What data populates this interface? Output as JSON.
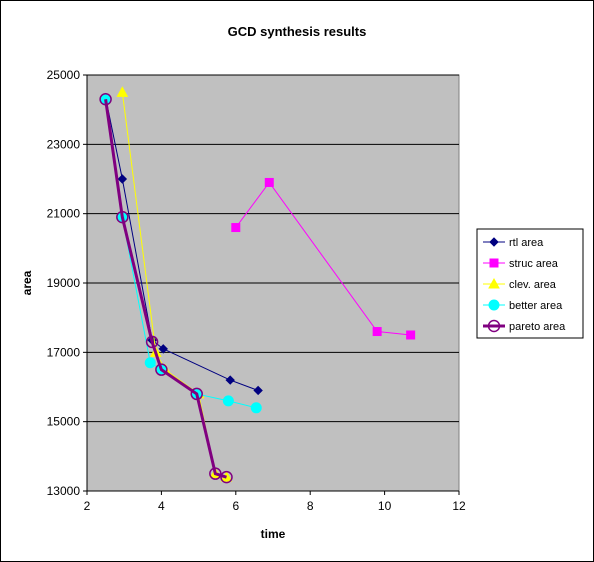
{
  "chart_data": {
    "type": "line",
    "title": "GCD synthesis results",
    "xlabel": "time",
    "ylabel": "area",
    "xlim": [
      2,
      12
    ],
    "ylim": [
      13000,
      25000
    ],
    "xticks": [
      2,
      4,
      6,
      8,
      10,
      12
    ],
    "yticks": [
      13000,
      15000,
      17000,
      19000,
      21000,
      23000,
      25000
    ],
    "tick_labels_x": [
      "2",
      "4",
      "6",
      "8",
      "10",
      "12"
    ],
    "tick_labels_y": [
      "13000",
      "15000",
      "17000",
      "19000",
      "21000",
      "23000",
      "25000"
    ],
    "grid": "horizontal",
    "plot_background": "#c0c0c0",
    "legend_position": "right",
    "series": [
      {
        "name": "rtl area",
        "color": "#000080",
        "marker": "diamond",
        "points": [
          [
            2.5,
            24350
          ],
          [
            2.95,
            22000
          ],
          [
            3.75,
            17350
          ],
          [
            4.05,
            17100
          ],
          [
            5.85,
            16200
          ],
          [
            6.6,
            15900
          ]
        ]
      },
      {
        "name": "struc area",
        "color": "#ff00ff",
        "marker": "square",
        "points": [
          [
            6.0,
            20600
          ],
          [
            6.9,
            21900
          ],
          [
            9.8,
            17600
          ],
          [
            10.7,
            17500
          ]
        ]
      },
      {
        "name": "clev. area",
        "color": "#ffff00",
        "marker": "triangle",
        "points": [
          [
            2.95,
            24500
          ],
          [
            3.85,
            17000
          ],
          [
            4.1,
            16500
          ],
          [
            5.0,
            15800
          ],
          [
            5.45,
            13500
          ],
          [
            5.75,
            13400
          ]
        ]
      },
      {
        "name": "better area",
        "color": "#00ffff",
        "marker": "circle",
        "points": [
          [
            2.5,
            24300
          ],
          [
            2.95,
            20900
          ],
          [
            3.7,
            16700
          ],
          [
            4.0,
            16500
          ],
          [
            4.95,
            15800
          ],
          [
            5.8,
            15600
          ],
          [
            6.55,
            15400
          ]
        ]
      },
      {
        "name": "pareto area",
        "color": "#800080",
        "marker": "circle-open",
        "points": [
          [
            2.5,
            24300
          ],
          [
            2.95,
            20900
          ],
          [
            3.75,
            17300
          ],
          [
            4.0,
            16500
          ],
          [
            4.95,
            15800
          ],
          [
            5.45,
            13500
          ],
          [
            5.75,
            13400
          ]
        ]
      }
    ]
  }
}
